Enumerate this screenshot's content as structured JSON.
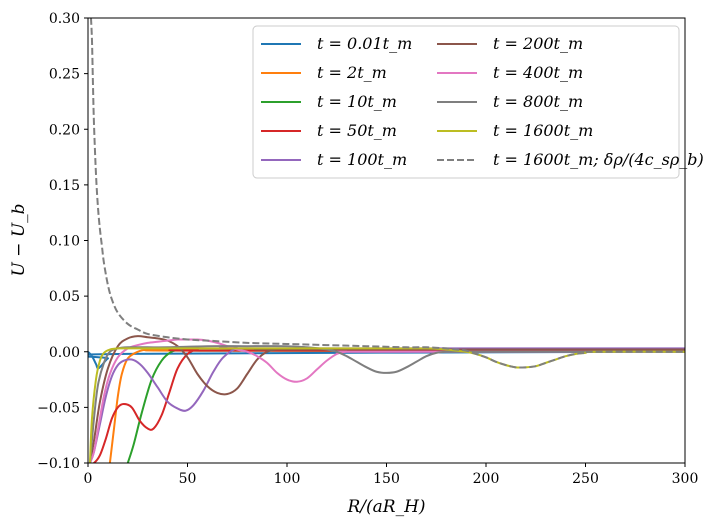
{
  "chart_data": {
    "type": "line",
    "xlabel": "R/(aR_H)",
    "ylabel": "U − U_b",
    "xlim": [
      0,
      300
    ],
    "ylim": [
      -0.1,
      0.3
    ],
    "x_ticks": [
      0,
      50,
      100,
      150,
      200,
      250,
      300
    ],
    "x_tick_labels": [
      "0",
      "50",
      "100",
      "150",
      "200",
      "250",
      "300"
    ],
    "y_ticks": [
      -0.1,
      -0.05,
      0.0,
      0.05,
      0.1,
      0.15,
      0.2,
      0.25,
      0.3
    ],
    "y_tick_labels": [
      "−0.10",
      "−0.05",
      "0.00",
      "0.05",
      "0.10",
      "0.15",
      "0.20",
      "0.25",
      "0.30"
    ],
    "legend_position": "top-right",
    "grid": false,
    "series": [
      {
        "name": "t = 0.01t_m",
        "color": "#1f77b4",
        "style": "solid",
        "x": [
          0,
          2,
          4,
          5,
          7,
          10,
          15,
          300
        ],
        "y": [
          0.0,
          -0.004,
          -0.011,
          -0.015,
          -0.012,
          -0.006,
          -0.002,
          0.0
        ]
      },
      {
        "name": "t = 2t_m",
        "color": "#ff7f0e",
        "style": "solid",
        "x": [
          11,
          13,
          15,
          17,
          20,
          25,
          30,
          40,
          50,
          300
        ],
        "y": [
          -0.1,
          -0.07,
          -0.04,
          -0.02,
          -0.006,
          0.0,
          0.002,
          0.002,
          0.001,
          0.001
        ]
      },
      {
        "name": "t = 10t_m",
        "color": "#2ca02c",
        "style": "solid",
        "x": [
          20,
          23,
          27,
          32,
          37,
          42,
          47,
          55,
          65,
          300
        ],
        "y": [
          -0.1,
          -0.083,
          -0.055,
          -0.025,
          -0.008,
          0.0,
          0.002,
          0.002,
          0.001,
          0.001
        ]
      },
      {
        "name": "t = 50t_m",
        "color": "#d62728",
        "style": "solid",
        "x": [
          1,
          3,
          6,
          9,
          12,
          15,
          18,
          22,
          26,
          30,
          33,
          37,
          41,
          45,
          50,
          55,
          60,
          300
        ],
        "y": [
          -0.1,
          -0.1,
          -0.093,
          -0.078,
          -0.06,
          -0.05,
          -0.047,
          -0.05,
          -0.062,
          -0.069,
          -0.069,
          -0.057,
          -0.036,
          -0.015,
          -0.002,
          0.002,
          0.001,
          0.001
        ]
      },
      {
        "name": "t = 100t_m",
        "color": "#9467bd",
        "style": "solid",
        "x": [
          1,
          3,
          6,
          9,
          12,
          15,
          18,
          22,
          26,
          30,
          35,
          40,
          45,
          49,
          53,
          58,
          63,
          68,
          75,
          85,
          300
        ],
        "y": [
          -0.1,
          -0.09,
          -0.065,
          -0.04,
          -0.022,
          -0.012,
          -0.008,
          -0.007,
          -0.011,
          -0.019,
          -0.032,
          -0.045,
          -0.051,
          -0.053,
          -0.048,
          -0.035,
          -0.018,
          -0.005,
          0.003,
          0.003,
          0.003
        ]
      },
      {
        "name": "t = 200t_m",
        "color": "#8c564b",
        "style": "solid",
        "x": [
          1,
          3,
          6,
          10,
          15,
          20,
          25,
          30,
          35,
          40,
          45,
          50,
          55,
          60,
          65,
          70,
          75,
          80,
          85,
          90,
          95,
          100,
          300
        ],
        "y": [
          -0.1,
          -0.08,
          -0.045,
          -0.015,
          0.005,
          0.012,
          0.014,
          0.013,
          0.012,
          0.01,
          0.005,
          -0.005,
          -0.02,
          -0.031,
          -0.037,
          -0.038,
          -0.033,
          -0.02,
          -0.007,
          0.0,
          0.002,
          0.002,
          0.002
        ]
      },
      {
        "name": "t = 400t_m",
        "color": "#e377c2",
        "style": "solid",
        "x": [
          1,
          3,
          5,
          8,
          11,
          15,
          20,
          25,
          30,
          35,
          40,
          45,
          50,
          55,
          60,
          65,
          70,
          75,
          80,
          85,
          90,
          95,
          100,
          105,
          110,
          115,
          120,
          125,
          130,
          140,
          300
        ],
        "y": [
          -0.1,
          -0.09,
          -0.07,
          -0.04,
          -0.02,
          -0.005,
          0.003,
          0.006,
          0.008,
          0.009,
          0.01,
          0.011,
          0.011,
          0.011,
          0.01,
          0.008,
          0.005,
          0.002,
          0.0,
          -0.004,
          -0.01,
          -0.019,
          -0.025,
          -0.027,
          -0.024,
          -0.016,
          -0.008,
          -0.002,
          0.0,
          0.0,
          0.0
        ]
      },
      {
        "name": "t = 800t_m",
        "color": "#7f7f7f",
        "style": "solid",
        "x": [
          1,
          3,
          5,
          8,
          11,
          15,
          20,
          30,
          40,
          60,
          80,
          100,
          110,
          120,
          125,
          130,
          135,
          140,
          145,
          150,
          155,
          160,
          165,
          170,
          175,
          180,
          185,
          190,
          300
        ],
        "y": [
          -0.1,
          -0.06,
          -0.03,
          -0.01,
          0.0,
          0.003,
          0.004,
          0.004,
          0.004,
          0.005,
          0.005,
          0.005,
          0.004,
          0.002,
          0.0,
          -0.004,
          -0.009,
          -0.014,
          -0.018,
          -0.019,
          -0.018,
          -0.014,
          -0.009,
          -0.004,
          -0.001,
          0.0,
          0.0,
          0.0,
          0.0
        ]
      },
      {
        "name": "t = 1600t_m",
        "color": "#bcbd22",
        "style": "solid",
        "x": [
          1,
          2,
          4,
          6,
          8,
          11,
          15,
          20,
          30,
          50,
          100,
          150,
          170,
          180,
          185,
          190,
          195,
          200,
          205,
          210,
          215,
          220,
          225,
          230,
          235,
          240,
          245,
          250,
          255,
          300
        ],
        "y": [
          -0.1,
          -0.06,
          -0.025,
          -0.008,
          -0.001,
          0.002,
          0.003,
          0.003,
          0.003,
          0.003,
          0.003,
          0.003,
          0.003,
          0.002,
          0.001,
          0.0,
          -0.002,
          -0.005,
          -0.009,
          -0.012,
          -0.014,
          -0.014,
          -0.013,
          -0.01,
          -0.007,
          -0.004,
          -0.002,
          -0.001,
          0.0,
          0.0
        ]
      },
      {
        "name": "t = 1600t_m; δρ/(4c_sρ_b)",
        "color": "#7f7f7f",
        "style": "dashed",
        "x": [
          1.5,
          2,
          2.5,
          3,
          4,
          5,
          6,
          7,
          8,
          10,
          12,
          15,
          20,
          25,
          30,
          40,
          50,
          60,
          80,
          100,
          120,
          140,
          160,
          170,
          180,
          185,
          190,
          195,
          200,
          205,
          210,
          215,
          220,
          225,
          230,
          235,
          240,
          245,
          250,
          255,
          300
        ],
        "y": [
          0.3,
          0.28,
          0.24,
          0.205,
          0.16,
          0.13,
          0.11,
          0.095,
          0.08,
          0.06,
          0.047,
          0.035,
          0.025,
          0.02,
          0.016,
          0.013,
          0.011,
          0.01,
          0.008,
          0.007,
          0.006,
          0.005,
          0.004,
          0.004,
          0.003,
          0.002,
          0.001,
          -0.002,
          -0.005,
          -0.009,
          -0.012,
          -0.014,
          -0.014,
          -0.013,
          -0.01,
          -0.007,
          -0.004,
          -0.002,
          -0.001,
          0.0,
          0.0
        ]
      }
    ]
  }
}
